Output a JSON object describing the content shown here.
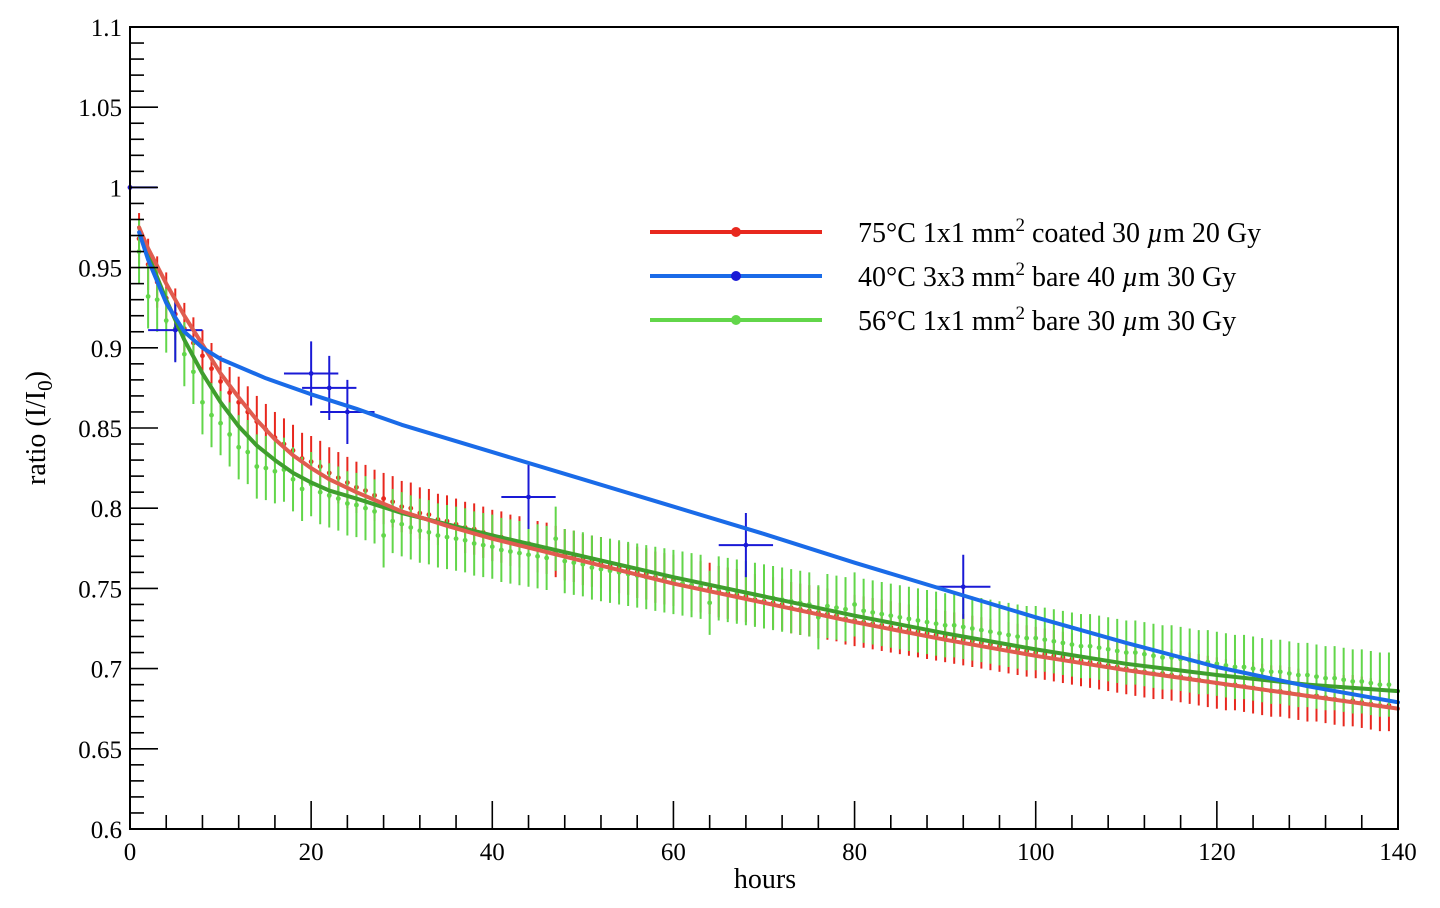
{
  "chart_data": {
    "type": "scatter",
    "title": "",
    "xlabel": "hours",
    "ylabel": "ratio (I/I₀)",
    "xlim": [
      0,
      140
    ],
    "ylim": [
      0.6,
      1.1
    ],
    "grid": false,
    "legend_position": "top-right",
    "x_ticks": [
      "0",
      "20",
      "40",
      "60",
      "80",
      "100",
      "120",
      "140"
    ],
    "y_ticks": [
      "0.6",
      "0.65",
      "0.7",
      "0.75",
      "0.8",
      "0.85",
      "0.9",
      "0.95",
      "1",
      "1.05",
      "1.1"
    ],
    "series": [
      {
        "name": "75°C 1x1 mm² coated 30 µm 20 Gy",
        "legend_parts": [
          "75°C 1x1 mm",
          "2",
          " coated 30 ",
          "µ",
          "m 20 Gy"
        ],
        "color": "#e8281e",
        "fit_color": "#e05c4f",
        "marker": "point",
        "x_start": 0,
        "x_step": 1,
        "y_error": 0.016,
        "y": [
          1.0,
          0.968,
          0.952,
          0.941,
          0.931,
          0.921,
          0.912,
          0.903,
          0.895,
          0.887,
          0.879,
          0.872,
          0.866,
          0.86,
          0.854,
          0.849,
          0.844,
          0.84,
          0.836,
          0.831,
          0.829,
          0.826,
          0.822,
          0.819,
          0.816,
          0.813,
          0.811,
          0.808,
          0.806,
          0.804,
          0.801,
          0.8,
          0.797,
          0.796,
          0.793,
          0.792,
          0.79,
          0.788,
          0.787,
          0.785,
          0.783,
          0.782,
          0.78,
          0.779,
          0.778,
          0.776,
          0.775,
          0.773,
          0.771,
          0.77,
          0.768,
          0.767,
          0.766,
          0.764,
          0.763,
          0.762,
          0.76,
          0.759,
          0.757,
          0.756,
          0.755,
          0.753,
          0.752,
          0.751,
          0.75,
          0.748,
          0.747,
          0.746,
          0.745,
          0.743,
          0.742,
          0.741,
          0.74,
          0.738,
          0.737,
          0.736,
          0.735,
          0.734,
          0.733,
          0.731,
          0.73,
          0.729,
          0.728,
          0.727,
          0.726,
          0.725,
          0.724,
          0.723,
          0.722,
          0.721,
          0.72,
          0.719,
          0.718,
          0.717,
          0.716,
          0.715,
          0.714,
          0.713,
          0.712,
          0.711,
          0.71,
          0.709,
          0.708,
          0.707,
          0.706,
          0.705,
          0.704,
          0.703,
          0.702,
          0.701,
          0.7,
          0.699,
          0.698,
          0.697,
          0.697,
          0.696,
          0.695,
          0.694,
          0.693,
          0.692,
          0.691,
          0.69,
          0.69,
          0.689,
          0.688,
          0.687,
          0.686,
          0.686,
          0.685,
          0.684,
          0.683,
          0.683,
          0.682,
          0.681,
          0.68,
          0.68,
          0.679,
          0.678,
          0.677,
          0.677
        ],
        "fit": [
          [
            1,
            0.975
          ],
          [
            2,
            0.962
          ],
          [
            4,
            0.94
          ],
          [
            6,
            0.92
          ],
          [
            8,
            0.902
          ],
          [
            10,
            0.884
          ],
          [
            12,
            0.869
          ],
          [
            14,
            0.855
          ],
          [
            16,
            0.843
          ],
          [
            18,
            0.833
          ],
          [
            20,
            0.825
          ],
          [
            22,
            0.818
          ],
          [
            25,
            0.81
          ],
          [
            30,
            0.798
          ],
          [
            35,
            0.789
          ],
          [
            40,
            0.781
          ],
          [
            50,
            0.767
          ],
          [
            60,
            0.753
          ],
          [
            70,
            0.741
          ],
          [
            80,
            0.729
          ],
          [
            90,
            0.718
          ],
          [
            100,
            0.708
          ],
          [
            110,
            0.699
          ],
          [
            120,
            0.691
          ],
          [
            130,
            0.683
          ],
          [
            140,
            0.675
          ]
        ]
      },
      {
        "name": "40°C 3x3 mm² bare 40 µm 30 Gy",
        "legend_parts": [
          "40°C 3x3 mm",
          "2",
          " bare 40 ",
          "µ",
          "m 30 Gy"
        ],
        "color": "#1a1ad6",
        "fit_color": "#1a6be8",
        "marker": "cross",
        "points": [
          {
            "x": 0,
            "y": 1.0,
            "xerr": 3,
            "yerr": 0.018
          },
          {
            "x": 5,
            "y": 0.911,
            "xerr": 3,
            "yerr": 0.02
          },
          {
            "x": 20,
            "y": 0.884,
            "xerr": 3,
            "yerr": 0.02
          },
          {
            "x": 22,
            "y": 0.875,
            "xerr": 3,
            "yerr": 0.02
          },
          {
            "x": 24,
            "y": 0.86,
            "xerr": 3,
            "yerr": 0.02
          },
          {
            "x": 44,
            "y": 0.807,
            "xerr": 3,
            "yerr": 0.02
          },
          {
            "x": 68,
            "y": 0.777,
            "xerr": 3,
            "yerr": 0.02
          },
          {
            "x": 92,
            "y": 0.751,
            "xerr": 3,
            "yerr": 0.02
          }
        ],
        "fit": [
          [
            1,
            0.972
          ],
          [
            2,
            0.955
          ],
          [
            4,
            0.928
          ],
          [
            6,
            0.91
          ],
          [
            8,
            0.9
          ],
          [
            10,
            0.893
          ],
          [
            15,
            0.881
          ],
          [
            20,
            0.871
          ],
          [
            25,
            0.862
          ],
          [
            30,
            0.852
          ],
          [
            40,
            0.835
          ],
          [
            50,
            0.818
          ],
          [
            60,
            0.801
          ],
          [
            70,
            0.784
          ],
          [
            80,
            0.766
          ],
          [
            90,
            0.749
          ],
          [
            100,
            0.732
          ],
          [
            110,
            0.716
          ],
          [
            120,
            0.701
          ],
          [
            130,
            0.689
          ],
          [
            140,
            0.679
          ]
        ]
      },
      {
        "name": "56°C 1x1 mm² bare 30 µm 30 Gy",
        "legend_parts": [
          "56°C 1x1 mm",
          "2",
          " bare 30 ",
          "µ",
          "m 30 Gy"
        ],
        "color": "#62d64a",
        "fit_color": "#3f9e2e",
        "marker": "point",
        "x_start": 1,
        "x_step": 1,
        "y_error": 0.02,
        "y": [
          0.96,
          0.932,
          0.93,
          0.917,
          0.912,
          0.896,
          0.885,
          0.866,
          0.858,
          0.853,
          0.846,
          0.838,
          0.835,
          0.826,
          0.825,
          0.823,
          0.824,
          0.818,
          0.812,
          0.815,
          0.81,
          0.808,
          0.806,
          0.803,
          0.802,
          0.8,
          0.798,
          0.783,
          0.792,
          0.79,
          0.788,
          0.786,
          0.785,
          0.783,
          0.782,
          0.781,
          0.78,
          0.778,
          0.777,
          0.776,
          0.774,
          0.773,
          0.772,
          0.771,
          0.77,
          0.769,
          0.781,
          0.767,
          0.766,
          0.765,
          0.763,
          0.762,
          0.761,
          0.76,
          0.759,
          0.758,
          0.757,
          0.756,
          0.755,
          0.754,
          0.753,
          0.752,
          0.751,
          0.741,
          0.75,
          0.749,
          0.748,
          0.747,
          0.746,
          0.745,
          0.744,
          0.743,
          0.742,
          0.741,
          0.74,
          0.732,
          0.739,
          0.738,
          0.737,
          0.74,
          0.736,
          0.735,
          0.734,
          0.733,
          0.732,
          0.731,
          0.73,
          0.729,
          0.728,
          0.727,
          0.727,
          0.726,
          0.725,
          0.724,
          0.723,
          0.722,
          0.721,
          0.72,
          0.719,
          0.719,
          0.718,
          0.717,
          0.716,
          0.715,
          0.714,
          0.714,
          0.713,
          0.712,
          0.711,
          0.71,
          0.71,
          0.709,
          0.708,
          0.707,
          0.707,
          0.706,
          0.705,
          0.704,
          0.704,
          0.703,
          0.702,
          0.701,
          0.701,
          0.7,
          0.699,
          0.698,
          0.698,
          0.697,
          0.696,
          0.696,
          0.695,
          0.694,
          0.694,
          0.693,
          0.692,
          0.692,
          0.691,
          0.69,
          0.69
        ],
        "fit": [
          [
            1,
            0.975
          ],
          [
            2,
            0.958
          ],
          [
            4,
            0.93
          ],
          [
            6,
            0.905
          ],
          [
            8,
            0.884
          ],
          [
            10,
            0.866
          ],
          [
            12,
            0.851
          ],
          [
            14,
            0.839
          ],
          [
            16,
            0.83
          ],
          [
            18,
            0.822
          ],
          [
            20,
            0.816
          ],
          [
            22,
            0.811
          ],
          [
            25,
            0.806
          ],
          [
            30,
            0.797
          ],
          [
            35,
            0.79
          ],
          [
            40,
            0.783
          ],
          [
            50,
            0.77
          ],
          [
            60,
            0.757
          ],
          [
            70,
            0.745
          ],
          [
            80,
            0.733
          ],
          [
            90,
            0.722
          ],
          [
            100,
            0.712
          ],
          [
            110,
            0.703
          ],
          [
            120,
            0.696
          ],
          [
            130,
            0.69
          ],
          [
            140,
            0.686
          ]
        ]
      }
    ]
  }
}
